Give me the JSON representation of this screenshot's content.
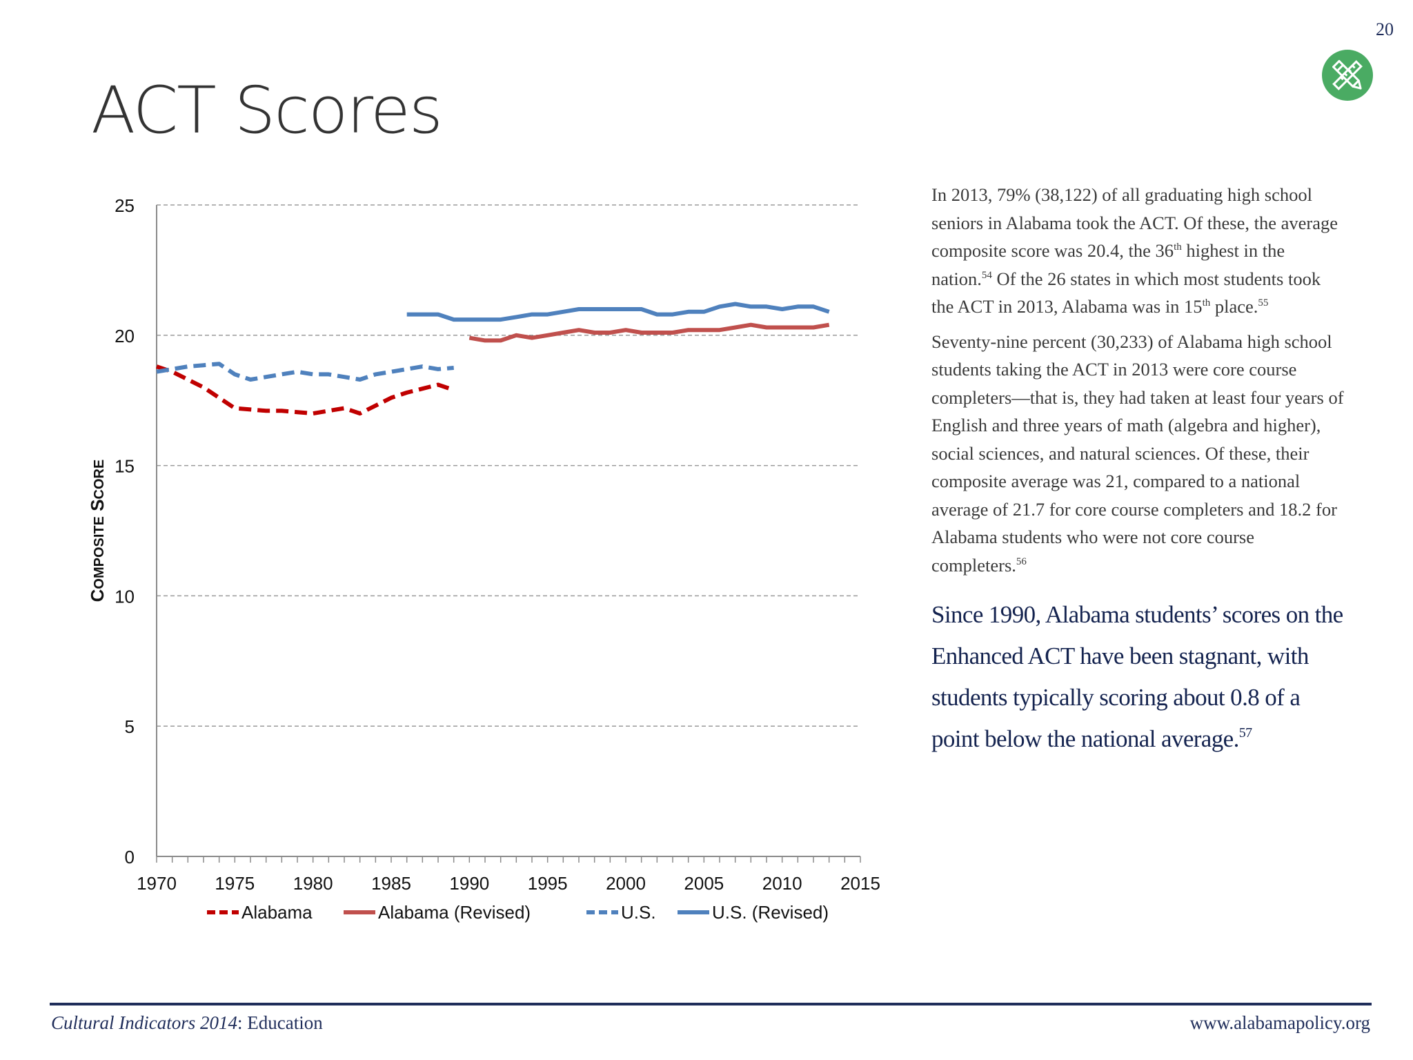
{
  "page": {
    "number": "20",
    "title": "ACT Scores",
    "badge_icon": "pencil-ruler-icon"
  },
  "text": {
    "p1": {
      "a": "In 2013, 79% (38,122) of all graduating high school seniors in Alabama took the ACT.  Of these, the average composite score was 20.4, the 36",
      "sup1": "th",
      "b": " highest in the nation.",
      "ref1": "54",
      "c": " Of the 26 states in which most students took the ACT in 2013, Alabama was in 15",
      "sup2": "th",
      "d": " place.",
      "ref2": "55"
    },
    "p2": {
      "a": "Seventy-nine percent (30,233) of Alabama high school students taking the ACT in 2013 were core course completers—that is, they had taken at least four years of English and three years of math (algebra and higher), social sciences, and natural sciences.  Of these, their composite average was 21, compared to a national average of 21.7 for core course completers and 18.2 for Alabama students who were not core course completers.",
      "ref": "56"
    },
    "callout": {
      "text": "Since 1990, Alabama students’ scores on the Enhanced ACT have been stagnant, with students typically scoring about 0.8 of a point below the national average.",
      "ref": "57"
    }
  },
  "footer": {
    "left_italic": "Cultural Indicators 2014",
    "left_rest": ": Education",
    "right": "www.alabamapolicy.org"
  },
  "chart_data": {
    "type": "line",
    "ylabel": "Composite Score",
    "xlabel": "",
    "xlim": [
      1970,
      2015
    ],
    "ylim": [
      0,
      25
    ],
    "xticks": [
      1970,
      1975,
      1980,
      1985,
      1990,
      1995,
      2000,
      2005,
      2010,
      2015
    ],
    "yticks": [
      0,
      5,
      10,
      15,
      20,
      25
    ],
    "grid": "horizontal-dashed",
    "legend": "bottom",
    "series": [
      {
        "name": "Alabama",
        "color": "#c00000",
        "dash": true,
        "x": [
          1970,
          1971,
          1972,
          1973,
          1974,
          1975,
          1976,
          1977,
          1978,
          1979,
          1980,
          1981,
          1982,
          1983,
          1984,
          1985,
          1986,
          1987,
          1988,
          1989
        ],
        "y": [
          18.8,
          18.6,
          18.3,
          18.0,
          17.6,
          17.2,
          17.15,
          17.1,
          17.1,
          17.05,
          17.0,
          17.1,
          17.2,
          17.0,
          17.3,
          17.6,
          17.8,
          17.95,
          18.1,
          17.9
        ]
      },
      {
        "name": "Alabama (Revised)",
        "color": "#c0504d",
        "dash": false,
        "x": [
          1990,
          1991,
          1992,
          1993,
          1994,
          1995,
          1996,
          1997,
          1998,
          1999,
          2000,
          2001,
          2002,
          2003,
          2004,
          2005,
          2006,
          2007,
          2008,
          2009,
          2010,
          2011,
          2012,
          2013
        ],
        "y": [
          19.9,
          19.8,
          19.8,
          20.0,
          19.9,
          20.0,
          20.1,
          20.2,
          20.1,
          20.1,
          20.2,
          20.1,
          20.1,
          20.1,
          20.2,
          20.2,
          20.2,
          20.3,
          20.4,
          20.3,
          20.3,
          20.3,
          20.3,
          20.4
        ]
      },
      {
        "name": "U.S.",
        "color": "#4f81bd",
        "dash": true,
        "x": [
          1970,
          1971,
          1972,
          1973,
          1974,
          1975,
          1976,
          1977,
          1978,
          1979,
          1980,
          1981,
          1982,
          1983,
          1984,
          1985,
          1986,
          1987,
          1988,
          1989
        ],
        "y": [
          18.6,
          18.7,
          18.8,
          18.85,
          18.9,
          18.5,
          18.3,
          18.4,
          18.5,
          18.6,
          18.5,
          18.5,
          18.4,
          18.3,
          18.5,
          18.6,
          18.7,
          18.8,
          18.7,
          18.75
        ]
      },
      {
        "name": "U.S. (Revised)",
        "color": "#4f81bd",
        "dash": false,
        "x": [
          1986,
          1987,
          1988,
          1989,
          1990,
          1991,
          1992,
          1993,
          1994,
          1995,
          1996,
          1997,
          1998,
          1999,
          2000,
          2001,
          2002,
          2003,
          2004,
          2005,
          2006,
          2007,
          2008,
          2009,
          2010,
          2011,
          2012,
          2013
        ],
        "y": [
          20.8,
          20.8,
          20.8,
          20.6,
          20.6,
          20.6,
          20.6,
          20.7,
          20.8,
          20.8,
          20.9,
          21.0,
          21.0,
          21.0,
          21.0,
          21.0,
          20.8,
          20.8,
          20.9,
          20.9,
          21.1,
          21.2,
          21.1,
          21.1,
          21.0,
          21.1,
          21.1,
          20.9
        ]
      }
    ]
  }
}
